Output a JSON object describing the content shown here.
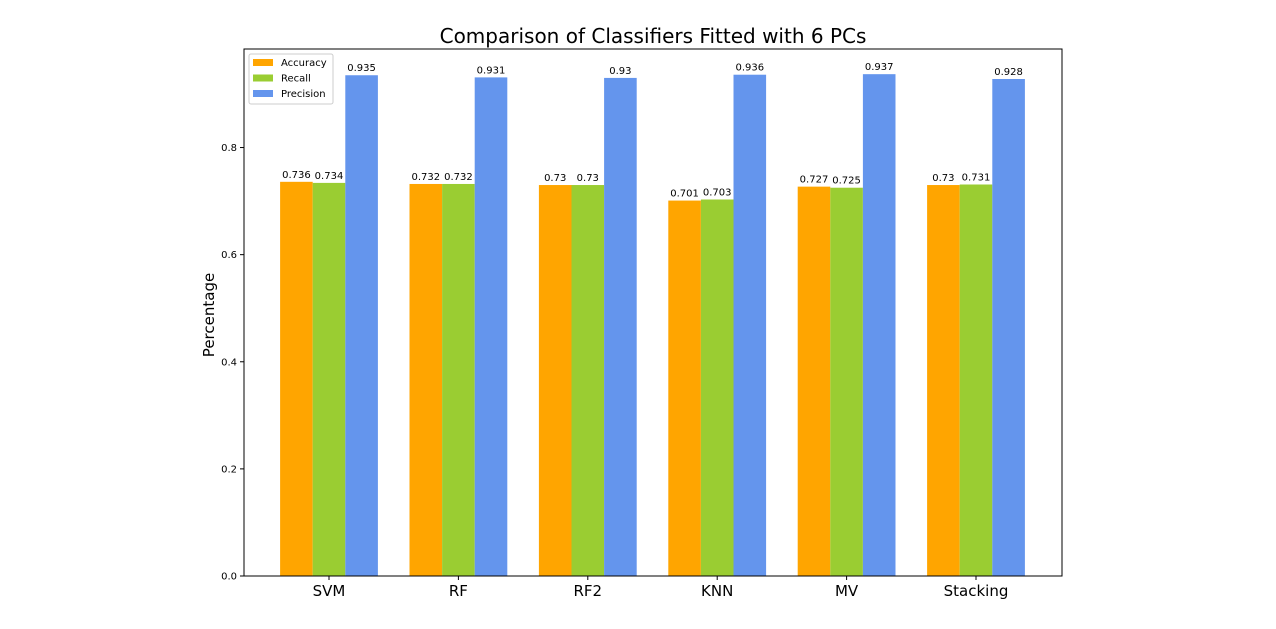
{
  "chart_data": {
    "type": "bar",
    "title": "Comparison of Classifiers Fitted with 6 PCs",
    "xlabel": "",
    "ylabel": "Percentage",
    "categories": [
      "SVM",
      "RF",
      "RF2",
      "KNN",
      "MV",
      "Stacking"
    ],
    "series": [
      {
        "name": "Accuracy",
        "color": "#ffa500",
        "values": [
          0.736,
          0.732,
          0.73,
          0.701,
          0.727,
          0.73
        ]
      },
      {
        "name": "Recall",
        "color": "#9acd32",
        "values": [
          0.734,
          0.732,
          0.73,
          0.703,
          0.725,
          0.731
        ]
      },
      {
        "name": "Precision",
        "color": "#6495ed",
        "values": [
          0.935,
          0.931,
          0.93,
          0.936,
          0.937,
          0.928
        ]
      }
    ],
    "data_labels": [
      [
        "0.736",
        "0.732",
        "0.73",
        "0.701",
        "0.727",
        "0.73"
      ],
      [
        "0.734",
        "0.732",
        "0.73",
        "0.703",
        "0.725",
        "0.731"
      ],
      [
        "0.935",
        "0.931",
        "0.93",
        "0.936",
        "0.937",
        "0.928"
      ]
    ],
    "ylim": [
      0,
      0.984
    ],
    "yticks": [
      "0.0",
      "0.2",
      "0.4",
      "0.6",
      "0.8"
    ],
    "ytick_values": [
      0,
      0.2,
      0.4,
      0.6,
      0.8
    ],
    "grid": false,
    "legend_position": "top-left"
  }
}
